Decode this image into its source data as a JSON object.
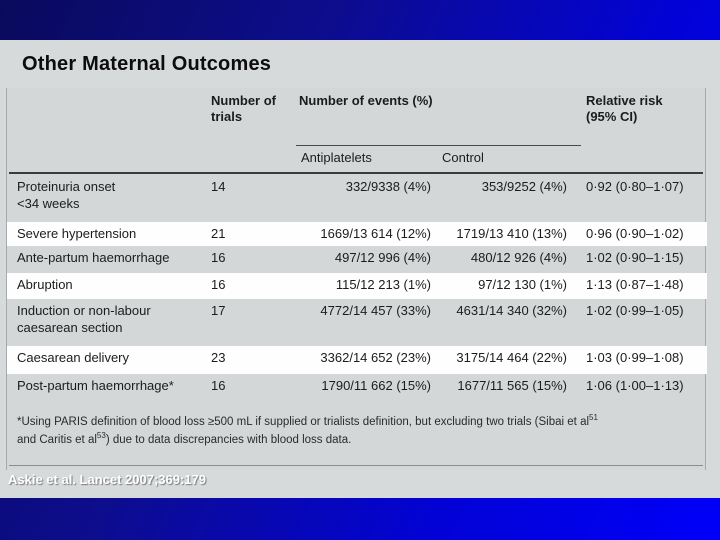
{
  "slide": {
    "title": "Other Maternal Outcomes",
    "citation": "Askie et al. Lancet 2007;369:179"
  },
  "table": {
    "headers": {
      "trials": "Number of\ntrials",
      "events": "Number of events (%)",
      "antiplatelets": "Antiplatelets",
      "control": "Control",
      "relative_risk": "Relative risk\n(95% CI)"
    },
    "rows": [
      {
        "label": "Proteinuria onset\n<34 weeks",
        "trials": "14",
        "antiplatelets": "332/9338 (4%)",
        "control": "353/9252 (4%)",
        "rr": "0·92 (0·80–1·07)"
      },
      {
        "label": "Severe hypertension",
        "trials": "21",
        "antiplatelets": "1669/13 614 (12%)",
        "control": "1719/13 410 (13%)",
        "rr": "0·96 (0·90–1·02)"
      },
      {
        "label": "Ante-partum haemorrhage",
        "trials": "16",
        "antiplatelets": "497/12 996 (4%)",
        "control": "480/12 926 (4%)",
        "rr": "1·02 (0·90–1·15)"
      },
      {
        "label": "Abruption",
        "trials": "16",
        "antiplatelets": "115/12 213 (1%)",
        "control": "97/12 130 (1%)",
        "rr": "1·13 (0·87–1·48)"
      },
      {
        "label": "Induction or non-labour\ncaesarean section",
        "trials": "17",
        "antiplatelets": "4772/14 457 (33%)",
        "control": "4631/14 340 (32%)",
        "rr": "1·02 (0·99–1·05)"
      },
      {
        "label": "Caesarean delivery",
        "trials": "23",
        "antiplatelets": "3362/14 652 (23%)",
        "control": "3175/14 464 (22%)",
        "rr": "1·03 (0·99–1·08)"
      },
      {
        "label": "Post-partum haemorrhage*",
        "trials": "16",
        "antiplatelets": "1790/11 662 (15%)",
        "control": "1677/11 565 (15%)",
        "rr": "1·06 (1·00–1·13)"
      }
    ],
    "footnote": {
      "line1": "*Using PARIS definition of blood loss ≥500 mL if supplied or trialists definition, but excluding two trials (Sibai et al",
      "sup1": "51",
      "line2a": "and Caritis et al",
      "sup2": "53",
      "line2b": ") due to data discrepancies with blood loss data."
    }
  }
}
